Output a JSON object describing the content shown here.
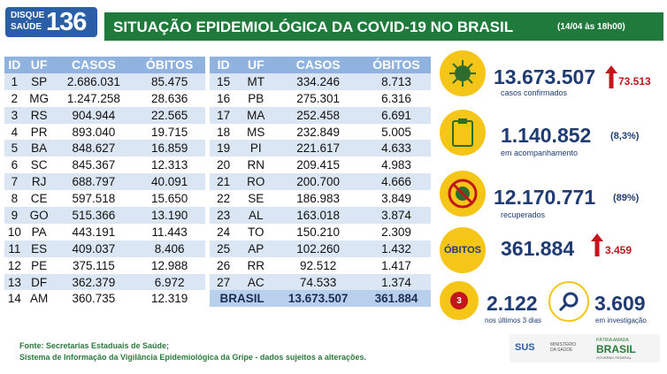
{
  "header": {
    "hotline_label": "DISQUE SAÚDE",
    "hotline_number": "136",
    "title": "SITUAÇÃO EPIDEMIOLÓGICA DA COVID-19 NO BRASIL",
    "date": "(14/04 às 18h00)"
  },
  "tables": [
    {
      "columns": [
        "ID",
        "UF",
        "CASOS",
        "ÓBITOS"
      ],
      "rows": [
        [
          "1",
          "SP",
          "2.686.031",
          "85.475"
        ],
        [
          "2",
          "MG",
          "1.247.258",
          "28.636"
        ],
        [
          "3",
          "RS",
          "904.944",
          "22.565"
        ],
        [
          "4",
          "PR",
          "893.040",
          "19.715"
        ],
        [
          "5",
          "BA",
          "848.627",
          "16.859"
        ],
        [
          "6",
          "SC",
          "845.367",
          "12.313"
        ],
        [
          "7",
          "RJ",
          "688.797",
          "40.091"
        ],
        [
          "8",
          "CE",
          "597.518",
          "15.650"
        ],
        [
          "9",
          "GO",
          "515.366",
          "13.190"
        ],
        [
          "10",
          "PA",
          "443.191",
          "11.443"
        ],
        [
          "11",
          "ES",
          "409.037",
          "8.406"
        ],
        [
          "12",
          "PE",
          "375.115",
          "12.988"
        ],
        [
          "13",
          "DF",
          "362.379",
          "6.972"
        ],
        [
          "14",
          "AM",
          "360.735",
          "12.319"
        ]
      ]
    },
    {
      "columns": [
        "ID",
        "UF",
        "CASOS",
        "ÓBITOS"
      ],
      "rows": [
        [
          "15",
          "MT",
          "334.246",
          "8.713"
        ],
        [
          "16",
          "PB",
          "275.301",
          "6.316"
        ],
        [
          "17",
          "MA",
          "252.458",
          "6.691"
        ],
        [
          "18",
          "MS",
          "232.849",
          "5.005"
        ],
        [
          "19",
          "PI",
          "221.617",
          "4.633"
        ],
        [
          "20",
          "RN",
          "209.415",
          "4.983"
        ],
        [
          "21",
          "RO",
          "200.700",
          "4.666"
        ],
        [
          "22",
          "SE",
          "186.983",
          "3.849"
        ],
        [
          "23",
          "AL",
          "163.018",
          "3.874"
        ],
        [
          "24",
          "TO",
          "150.210",
          "2.309"
        ],
        [
          "25",
          "AP",
          "102.260",
          "1.432"
        ],
        [
          "26",
          "RR",
          "92.512",
          "1.417"
        ],
        [
          "27",
          "AC",
          "74.533",
          "1.374"
        ]
      ],
      "total": [
        "BRASIL",
        "13.673.507",
        "361.884"
      ]
    }
  ],
  "summary": {
    "confirmed": {
      "value": "13.673.507",
      "change": "73.513",
      "label": "casos confirmados"
    },
    "monitoring": {
      "value": "1.140.852",
      "percent": "(8,3%)",
      "label": "em acompanhamento"
    },
    "recovered": {
      "value": "12.170.771",
      "percent": "(89%)",
      "label": "recuperados"
    },
    "deaths": {
      "label": "ÓBITOS",
      "value": "361.884",
      "change": "3.459"
    },
    "recent": {
      "icon": "3",
      "value": "2.122",
      "label": "nos últimos 3 dias"
    },
    "investigation": {
      "value": "3.609",
      "label": "em investigação"
    }
  },
  "footer": [
    "Fonte: Secretarias Estaduais de Saúde;",
    "Sistema de Informação da Vigilância Epidemiológica da Gripe - dados sujeitos a alterações."
  ],
  "logos": {
    "sus": "SUS",
    "ministry": "MINISTÉRIO DA SAÚDE",
    "motto": "PÁTRIA AMADA",
    "country": "BRASIL",
    "gov": "GOVERNO FEDERAL"
  }
}
